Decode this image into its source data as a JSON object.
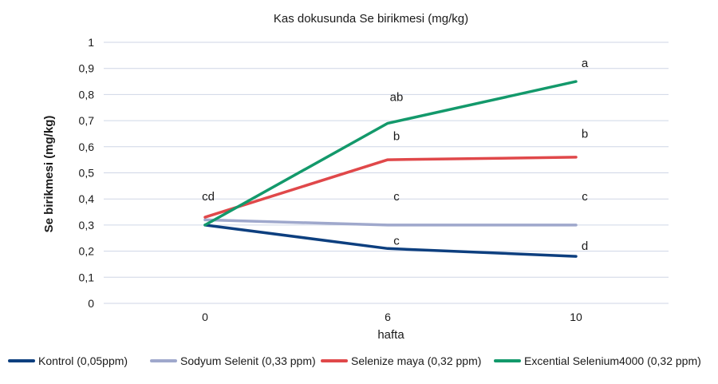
{
  "chart_data": {
    "type": "line",
    "title": "Kas dokusunda Se birikmesi (mg/kg)",
    "xlabel": "hafta",
    "ylabel": "Se birikmesi (mg/kg)",
    "categories": [
      "0",
      "6",
      "10"
    ],
    "ylim": [
      0,
      1
    ],
    "yticks": [
      "0",
      "0,1",
      "0,2",
      "0,3",
      "0,4",
      "0,5",
      "0,6",
      "0,7",
      "0,8",
      "0,9",
      "1"
    ],
    "grid": true,
    "legend_position": "bottom",
    "series": [
      {
        "name": "Kontrol (0,05ppm)",
        "values": [
          0.3,
          0.21,
          0.18
        ],
        "color": "#0d3f7f"
      },
      {
        "name": "Sodyum Selenit (0,33 ppm)",
        "values": [
          0.32,
          0.3,
          0.3
        ],
        "color": "#9fa8cc"
      },
      {
        "name": "Selenize maya (0,32 ppm)",
        "values": [
          0.33,
          0.55,
          0.56
        ],
        "color": "#e0484a"
      },
      {
        "name": "Excential Selenium4000 (0,32 ppm)",
        "values": [
          0.3,
          0.69,
          0.85
        ],
        "color": "#13996b"
      }
    ],
    "annotations": [
      {
        "text": "cd",
        "category": "0",
        "y": 0.41
      },
      {
        "text": "a",
        "category": "10",
        "y": 0.92
      },
      {
        "text": "ab",
        "category": "6",
        "y": 0.79
      },
      {
        "text": "b",
        "category": "6",
        "y": 0.64
      },
      {
        "text": "b",
        "category": "10",
        "y": 0.65
      },
      {
        "text": "c",
        "category": "6",
        "y": 0.41
      },
      {
        "text": "c",
        "category": "10",
        "y": 0.41
      },
      {
        "text": "c",
        "category": "6",
        "y": 0.24
      },
      {
        "text": "d",
        "category": "10",
        "y": 0.22
      }
    ]
  }
}
